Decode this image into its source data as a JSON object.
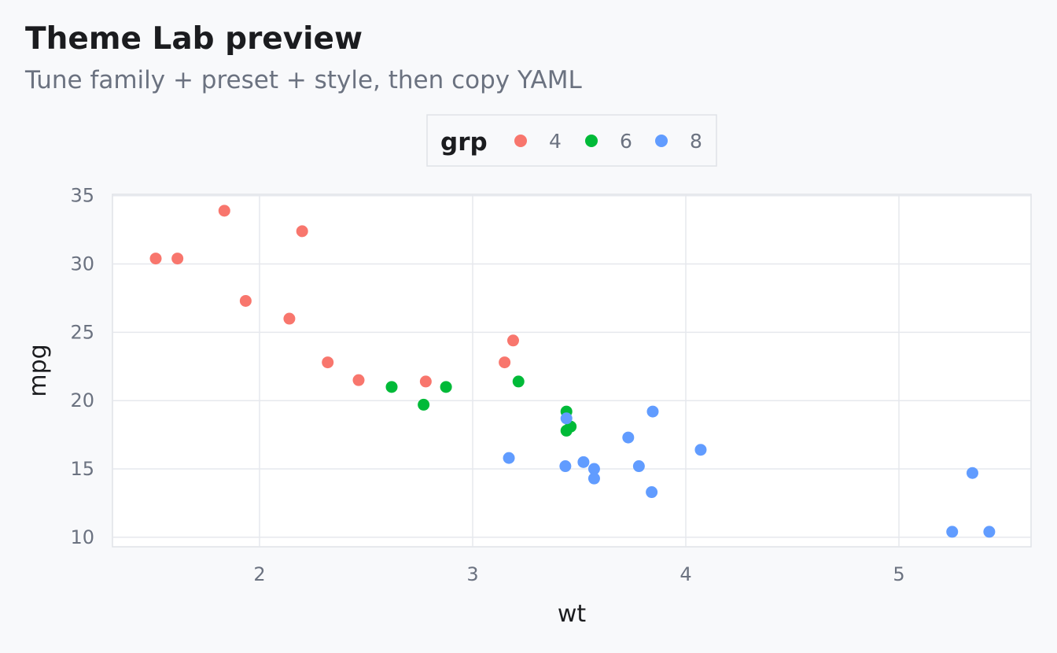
{
  "header": {
    "title": "Theme Lab preview",
    "subtitle": "Tune family + preset + style, then copy YAML"
  },
  "legend": {
    "title": "grp",
    "items": [
      {
        "label": "4",
        "color": "#F8766D"
      },
      {
        "label": "6",
        "color": "#00BA38"
      },
      {
        "label": "8",
        "color": "#619CFF"
      }
    ]
  },
  "chart_data": {
    "type": "scatter",
    "title": "Theme Lab preview",
    "subtitle": "Tune family + preset + style, then copy YAML",
    "xlabel": "wt",
    "ylabel": "mpg",
    "xlim": [
      1.31,
      5.62
    ],
    "ylim": [
      9.3,
      35.1
    ],
    "xticks": [
      2,
      3,
      4,
      5
    ],
    "yticks": [
      10,
      15,
      20,
      25,
      30,
      35
    ],
    "grid": true,
    "legend_position": "top",
    "series": [
      {
        "name": "4",
        "color": "#F8766D",
        "points": [
          {
            "x": 2.32,
            "y": 22.8
          },
          {
            "x": 3.19,
            "y": 24.4
          },
          {
            "x": 3.15,
            "y": 22.8
          },
          {
            "x": 2.2,
            "y": 32.4
          },
          {
            "x": 1.615,
            "y": 30.4
          },
          {
            "x": 1.835,
            "y": 33.9
          },
          {
            "x": 2.465,
            "y": 21.5
          },
          {
            "x": 1.935,
            "y": 27.3
          },
          {
            "x": 2.14,
            "y": 26.0
          },
          {
            "x": 1.513,
            "y": 30.4
          },
          {
            "x": 2.78,
            "y": 21.4
          }
        ]
      },
      {
        "name": "6",
        "color": "#00BA38",
        "points": [
          {
            "x": 2.62,
            "y": 21.0
          },
          {
            "x": 2.875,
            "y": 21.0
          },
          {
            "x": 3.215,
            "y": 21.4
          },
          {
            "x": 3.46,
            "y": 18.1
          },
          {
            "x": 3.44,
            "y": 19.2
          },
          {
            "x": 3.44,
            "y": 17.8
          },
          {
            "x": 2.77,
            "y": 19.7
          }
        ]
      },
      {
        "name": "8",
        "color": "#619CFF",
        "points": [
          {
            "x": 3.44,
            "y": 18.7
          },
          {
            "x": 3.57,
            "y": 14.3
          },
          {
            "x": 4.07,
            "y": 16.4
          },
          {
            "x": 3.73,
            "y": 17.3
          },
          {
            "x": 3.78,
            "y": 15.2
          },
          {
            "x": 5.25,
            "y": 10.4
          },
          {
            "x": 5.424,
            "y": 10.4
          },
          {
            "x": 5.345,
            "y": 14.7
          },
          {
            "x": 3.52,
            "y": 15.5
          },
          {
            "x": 3.435,
            "y": 15.2
          },
          {
            "x": 3.84,
            "y": 13.3
          },
          {
            "x": 3.845,
            "y": 19.2
          },
          {
            "x": 3.17,
            "y": 15.8
          },
          {
            "x": 3.57,
            "y": 15.0
          }
        ]
      }
    ]
  }
}
